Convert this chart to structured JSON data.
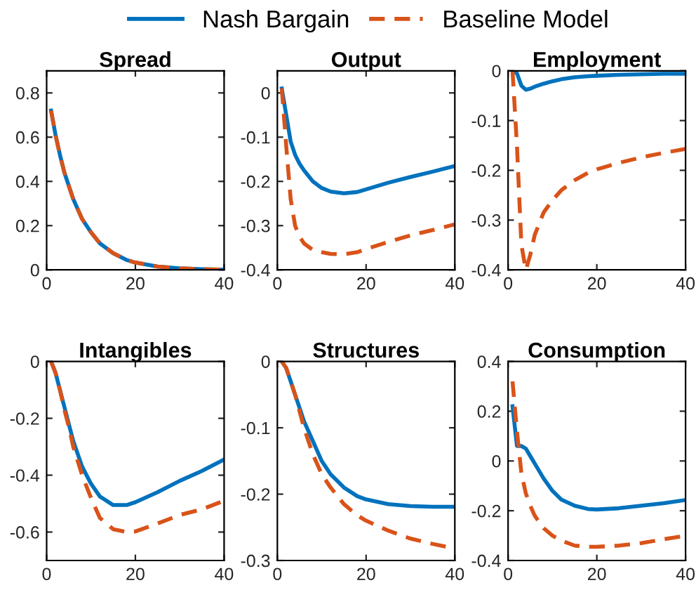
{
  "chart_data": [
    {
      "type": "line",
      "title": "Spread",
      "legend": "top",
      "x": [
        1,
        2,
        3,
        4,
        5,
        6,
        8,
        10,
        12,
        15,
        18,
        20,
        25,
        30,
        35,
        40
      ],
      "xlim": [
        0,
        40
      ],
      "xticks": [
        0,
        20,
        40
      ],
      "ylim": [
        0,
        0.9
      ],
      "yticks": [
        0,
        0.2,
        0.4,
        0.6,
        0.8
      ],
      "grid": false,
      "series": [
        {
          "name": "Nash Bargain",
          "color": "#0072bd",
          "line_style": "solid",
          "values": [
            0.72,
            0.61,
            0.52,
            0.44,
            0.38,
            0.32,
            0.23,
            0.17,
            0.12,
            0.075,
            0.045,
            0.033,
            0.015,
            0.007,
            0.003,
            0.001
          ]
        },
        {
          "name": "Baseline Model",
          "color": "#d95319",
          "line_style": "dashed",
          "values": [
            0.72,
            0.61,
            0.52,
            0.44,
            0.38,
            0.32,
            0.23,
            0.17,
            0.12,
            0.075,
            0.045,
            0.033,
            0.015,
            0.007,
            0.003,
            0.001
          ]
        }
      ]
    },
    {
      "type": "line",
      "title": "Output",
      "x": [
        1,
        2,
        3,
        4,
        5,
        6,
        8,
        10,
        12,
        15,
        18,
        20,
        25,
        30,
        35,
        40
      ],
      "xlim": [
        0,
        40
      ],
      "xticks": [
        0,
        20,
        40
      ],
      "ylim": [
        -0.4,
        0.05
      ],
      "yticks": [
        -0.4,
        -0.3,
        -0.2,
        -0.1,
        0
      ],
      "grid": false,
      "series": [
        {
          "color": "#0072bd",
          "line_style": "solid",
          "values": [
            0.01,
            -0.05,
            -0.11,
            -0.14,
            -0.16,
            -0.175,
            -0.2,
            -0.215,
            -0.223,
            -0.227,
            -0.224,
            -0.218,
            -0.203,
            -0.19,
            -0.178,
            -0.165
          ]
        },
        {
          "color": "#d95319",
          "line_style": "dashed",
          "values": [
            0.01,
            -0.12,
            -0.24,
            -0.3,
            -0.325,
            -0.34,
            -0.355,
            -0.36,
            -0.364,
            -0.365,
            -0.36,
            -0.353,
            -0.337,
            -0.322,
            -0.31,
            -0.297
          ]
        }
      ]
    },
    {
      "type": "line",
      "title": "Employment",
      "x": [
        1,
        2,
        3,
        4,
        5,
        6,
        8,
        10,
        12,
        15,
        18,
        20,
        25,
        30,
        35,
        40
      ],
      "xlim": [
        0,
        40
      ],
      "xticks": [
        0,
        20,
        40
      ],
      "ylim": [
        -0.4,
        0
      ],
      "yticks": [
        -0.4,
        -0.3,
        -0.2,
        -0.1,
        0
      ],
      "grid": false,
      "series": [
        {
          "color": "#0072bd",
          "line_style": "solid",
          "values": [
            0,
            -0.005,
            -0.03,
            -0.038,
            -0.036,
            -0.032,
            -0.026,
            -0.021,
            -0.017,
            -0.013,
            -0.011,
            -0.01,
            -0.008,
            -0.007,
            -0.006,
            -0.006
          ]
        },
        {
          "color": "#d95319",
          "line_style": "dashed",
          "values": [
            0,
            -0.15,
            -0.35,
            -0.4,
            -0.37,
            -0.33,
            -0.285,
            -0.26,
            -0.24,
            -0.22,
            -0.205,
            -0.198,
            -0.185,
            -0.174,
            -0.165,
            -0.157
          ]
        }
      ]
    },
    {
      "type": "line",
      "title": "Intangibles",
      "x": [
        1,
        2,
        3,
        4,
        5,
        6,
        8,
        10,
        12,
        15,
        18,
        20,
        25,
        30,
        35,
        40
      ],
      "xlim": [
        0,
        40
      ],
      "xticks": [
        0,
        20,
        40
      ],
      "ylim": [
        -0.7,
        0
      ],
      "yticks": [
        -0.6,
        -0.4,
        -0.2,
        0
      ],
      "grid": false,
      "series": [
        {
          "color": "#0072bd",
          "line_style": "solid",
          "values": [
            0,
            -0.04,
            -0.1,
            -0.16,
            -0.22,
            -0.28,
            -0.37,
            -0.43,
            -0.475,
            -0.505,
            -0.505,
            -0.495,
            -0.46,
            -0.42,
            -0.385,
            -0.345
          ]
        },
        {
          "color": "#d95319",
          "line_style": "dashed",
          "values": [
            0,
            -0.04,
            -0.1,
            -0.17,
            -0.23,
            -0.3,
            -0.4,
            -0.48,
            -0.55,
            -0.59,
            -0.6,
            -0.598,
            -0.57,
            -0.54,
            -0.52,
            -0.49
          ]
        }
      ]
    },
    {
      "type": "line",
      "title": "Structures",
      "x": [
        1,
        2,
        3,
        4,
        5,
        6,
        8,
        10,
        12,
        15,
        18,
        20,
        25,
        30,
        35,
        40
      ],
      "xlim": [
        0,
        40
      ],
      "xticks": [
        0,
        20,
        40
      ],
      "ylim": [
        -0.3,
        0
      ],
      "yticks": [
        -0.3,
        -0.2,
        -0.1,
        0
      ],
      "grid": false,
      "series": [
        {
          "color": "#0072bd",
          "line_style": "solid",
          "values": [
            0,
            -0.01,
            -0.03,
            -0.05,
            -0.07,
            -0.09,
            -0.12,
            -0.15,
            -0.17,
            -0.19,
            -0.203,
            -0.208,
            -0.215,
            -0.218,
            -0.219,
            -0.219
          ]
        },
        {
          "color": "#d95319",
          "line_style": "dashed",
          "values": [
            0,
            -0.01,
            -0.03,
            -0.05,
            -0.075,
            -0.1,
            -0.14,
            -0.17,
            -0.19,
            -0.215,
            -0.232,
            -0.24,
            -0.255,
            -0.267,
            -0.275,
            -0.282
          ]
        }
      ]
    },
    {
      "type": "line",
      "title": "Consumption",
      "x": [
        1,
        2,
        3,
        4,
        5,
        6,
        8,
        10,
        12,
        15,
        18,
        20,
        25,
        30,
        35,
        40
      ],
      "xlim": [
        0,
        40
      ],
      "xticks": [
        0,
        20,
        40
      ],
      "ylim": [
        -0.4,
        0.4
      ],
      "yticks": [
        -0.4,
        -0.2,
        0,
        0.2,
        0.4
      ],
      "grid": false,
      "series": [
        {
          "color": "#0072bd",
          "line_style": "solid",
          "values": [
            0.22,
            0.06,
            0.06,
            0.05,
            0.02,
            -0.01,
            -0.07,
            -0.12,
            -0.155,
            -0.18,
            -0.193,
            -0.195,
            -0.19,
            -0.18,
            -0.17,
            -0.157
          ]
        },
        {
          "color": "#d95319",
          "line_style": "dashed",
          "values": [
            0.32,
            0.12,
            -0.05,
            -0.13,
            -0.18,
            -0.22,
            -0.27,
            -0.3,
            -0.32,
            -0.34,
            -0.345,
            -0.345,
            -0.34,
            -0.33,
            -0.315,
            -0.3
          ]
        }
      ]
    }
  ]
}
